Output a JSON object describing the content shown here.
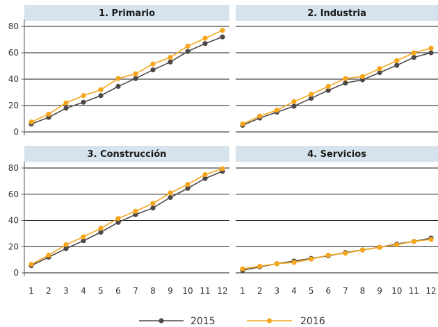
{
  "chart_data": [
    {
      "type": "line",
      "title": "1. Primario",
      "x": [
        1,
        2,
        3,
        4,
        5,
        6,
        7,
        8,
        9,
        10,
        11,
        12
      ],
      "ylim": [
        0,
        85
      ],
      "yticks": [
        0,
        20,
        40,
        60,
        80
      ],
      "series": [
        {
          "name": "2015",
          "values": [
            6,
            11,
            18,
            22.5,
            27.5,
            34.5,
            40.5,
            47,
            53,
            61,
            67,
            72
          ]
        },
        {
          "name": "2016",
          "values": [
            7.5,
            13.5,
            22,
            27.5,
            32,
            40.5,
            44,
            51.5,
            56.5,
            65,
            71,
            77
          ]
        }
      ]
    },
    {
      "type": "line",
      "title": "2. Industria",
      "x": [
        1,
        2,
        3,
        4,
        5,
        6,
        7,
        8,
        9,
        10,
        11,
        12
      ],
      "ylim": [
        0,
        85
      ],
      "yticks": [
        0,
        20,
        40,
        60,
        80
      ],
      "series": [
        {
          "name": "2015",
          "values": [
            5,
            10.5,
            15,
            19.5,
            25.5,
            31.5,
            37,
            39.5,
            45,
            50.5,
            56.5,
            60
          ]
        },
        {
          "name": "2016",
          "values": [
            6,
            12,
            16.5,
            23,
            28.5,
            34.5,
            40.5,
            42,
            48,
            54,
            60,
            63.5
          ]
        }
      ]
    },
    {
      "type": "line",
      "title": "3. Construcción",
      "x": [
        1,
        2,
        3,
        4,
        5,
        6,
        7,
        8,
        9,
        10,
        11,
        12
      ],
      "ylim": [
        0,
        85
      ],
      "yticks": [
        0,
        20,
        40,
        60,
        80
      ],
      "series": [
        {
          "name": "2015",
          "values": [
            5.5,
            12,
            18.5,
            24.5,
            31,
            38.5,
            44.5,
            49.5,
            57.5,
            64.5,
            72,
            77.5
          ]
        },
        {
          "name": "2016",
          "values": [
            6.5,
            13.5,
            21.5,
            27.5,
            34,
            41.5,
            47,
            53,
            61,
            67.5,
            75,
            79.5
          ]
        }
      ]
    },
    {
      "type": "line",
      "title": "4. Servicios",
      "x": [
        1,
        2,
        3,
        4,
        5,
        6,
        7,
        8,
        9,
        10,
        11,
        12
      ],
      "ylim": [
        0,
        85
      ],
      "yticks": [
        0,
        20,
        40,
        60,
        80
      ],
      "series": [
        {
          "name": "2015",
          "values": [
            2,
            4.5,
            7,
            9,
            11,
            13,
            15.5,
            17.5,
            19.5,
            22,
            24,
            26.5
          ]
        },
        {
          "name": "2016",
          "values": [
            3,
            5,
            7,
            8,
            10.5,
            13.5,
            15,
            17.5,
            19.5,
            21.5,
            24,
            25.5
          ]
        }
      ]
    }
  ],
  "legend": [
    {
      "label": "2015",
      "color": "#4d4847"
    },
    {
      "label": "2016",
      "color": "#f5a61c"
    }
  ],
  "colors": {
    "series_2015": "#4d4847",
    "series_2016": "#f5a61c",
    "title_bg": "#d6e3ec",
    "gridline": "#1a1a1a",
    "axis": "#555555"
  }
}
